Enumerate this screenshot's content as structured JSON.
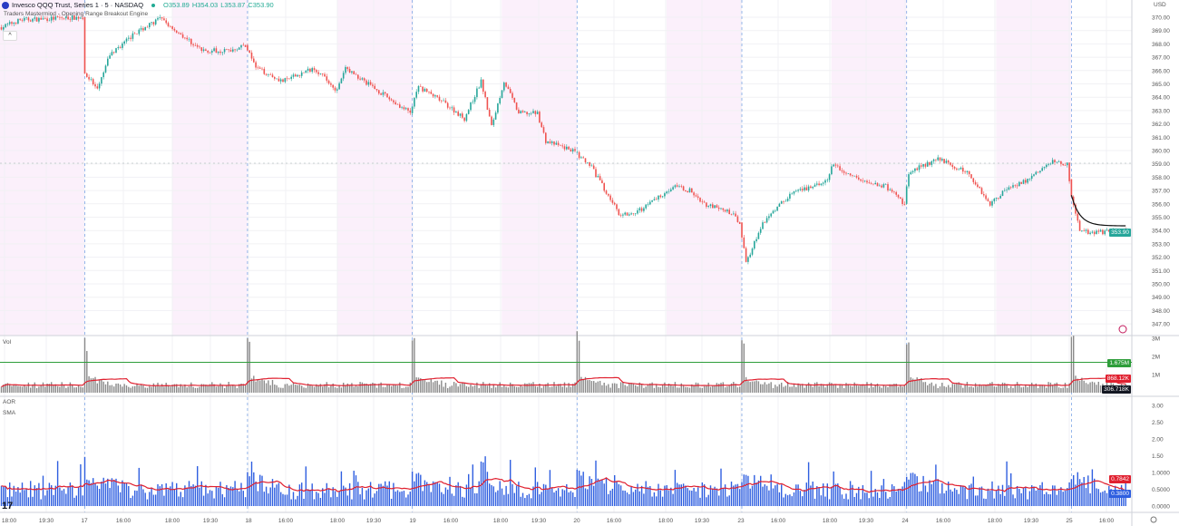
{
  "header": {
    "title": "Invesco QQQ Trust, Series 1 · 5 · NASDAQ",
    "open": "O353.89",
    "high": "H354.03",
    "low": "L353.87",
    "close": "C353.90",
    "indicator": "Traders Mastermind - Opening Range Breakout Engine",
    "currency": "USD"
  },
  "panes": {
    "volume_label": "Vol",
    "aor_label": "AOR",
    "sma_label": "SMA"
  },
  "tags": {
    "price": "353.90",
    "vol_level": "1.675M",
    "vol_ma": "868.12K",
    "vol_last": "306.718K",
    "aor_sma": "0.7842",
    "aor_last": "0.3800"
  },
  "logo_text": "17",
  "colors": {
    "up": "#26a69a",
    "down": "#ef5350",
    "ma": "#e0202f",
    "aor": "#2f5fe0",
    "level": "#2e9d3a",
    "session_shade": "#fbf0fb",
    "day_line": "#7fa7e6"
  },
  "chart_data": {
    "type": "candlestick",
    "price_axis": [
      "370.00",
      "369.00",
      "368.00",
      "367.00",
      "366.00",
      "365.00",
      "364.00",
      "363.00",
      "362.00",
      "361.00",
      "360.00",
      "359.00",
      "358.00",
      "357.00",
      "356.00",
      "355.00",
      "354.00",
      "353.00",
      "352.00",
      "351.00",
      "350.00",
      "349.00",
      "348.00",
      "347.00"
    ],
    "volume_axis": [
      "3M",
      "2M",
      "1M"
    ],
    "aor_axis": [
      "3.00",
      "2.50",
      "2.00",
      "1.50",
      "1.0000",
      "0.5000",
      "0.0000"
    ],
    "time_axis": [
      "18:00",
      "19:30",
      "17",
      "16:00",
      "18:00",
      "19:30",
      "18",
      "16:00",
      "18:00",
      "19:30",
      "19",
      "16:00",
      "18:00",
      "19:30",
      "20",
      "16:00",
      "18:00",
      "19:30",
      "23",
      "16:00",
      "18:00",
      "19:30",
      "24",
      "16:00",
      "18:00",
      "19:30",
      "25",
      "16:00"
    ],
    "close_path": [
      [
        0,
        369.25
      ],
      [
        9,
        369.8
      ],
      [
        39,
        370.0
      ],
      [
        40,
        365.9
      ],
      [
        46,
        364.5
      ],
      [
        52,
        367.2
      ],
      [
        65,
        368.9
      ],
      [
        76,
        369.9
      ],
      [
        87,
        368.6
      ],
      [
        96,
        367.5
      ],
      [
        109,
        367.5
      ],
      [
        117,
        367.9
      ],
      [
        122,
        366.2
      ],
      [
        135,
        365.2
      ],
      [
        150,
        366.2
      ],
      [
        161,
        364.5
      ],
      [
        165,
        366.2
      ],
      [
        174,
        365.2
      ],
      [
        196,
        362.8
      ],
      [
        200,
        364.8
      ],
      [
        213,
        363.5
      ],
      [
        222,
        362.4
      ],
      [
        230,
        365.2
      ],
      [
        235,
        361.8
      ],
      [
        241,
        365.2
      ],
      [
        248,
        362.8
      ],
      [
        257,
        362.8
      ],
      [
        261,
        360.7
      ],
      [
        274,
        360.0
      ],
      [
        283,
        358.7
      ],
      [
        296,
        355.3
      ],
      [
        304,
        355.3
      ],
      [
        322,
        357.3
      ],
      [
        330,
        357.0
      ],
      [
        337,
        356.0
      ],
      [
        350,
        355.3
      ],
      [
        354,
        354.6
      ],
      [
        357,
        351.6
      ],
      [
        365,
        354.6
      ],
      [
        378,
        356.7
      ],
      [
        396,
        357.7
      ],
      [
        398,
        358.9
      ],
      [
        404,
        358.4
      ],
      [
        413,
        357.7
      ],
      [
        424,
        357.3
      ],
      [
        433,
        356.0
      ],
      [
        435,
        358.4
      ],
      [
        450,
        359.4
      ],
      [
        457,
        358.7
      ],
      [
        463,
        358.4
      ],
      [
        474,
        356.0
      ],
      [
        483,
        357.3
      ],
      [
        491,
        357.7
      ],
      [
        504,
        359.2
      ],
      [
        511,
        359.0
      ],
      [
        513,
        356.7
      ],
      [
        517,
        353.9
      ],
      [
        539,
        353.9
      ]
    ],
    "day_start_bars": [
      40,
      118,
      197,
      276,
      355,
      434,
      513
    ],
    "volume_level": 1.675
  }
}
